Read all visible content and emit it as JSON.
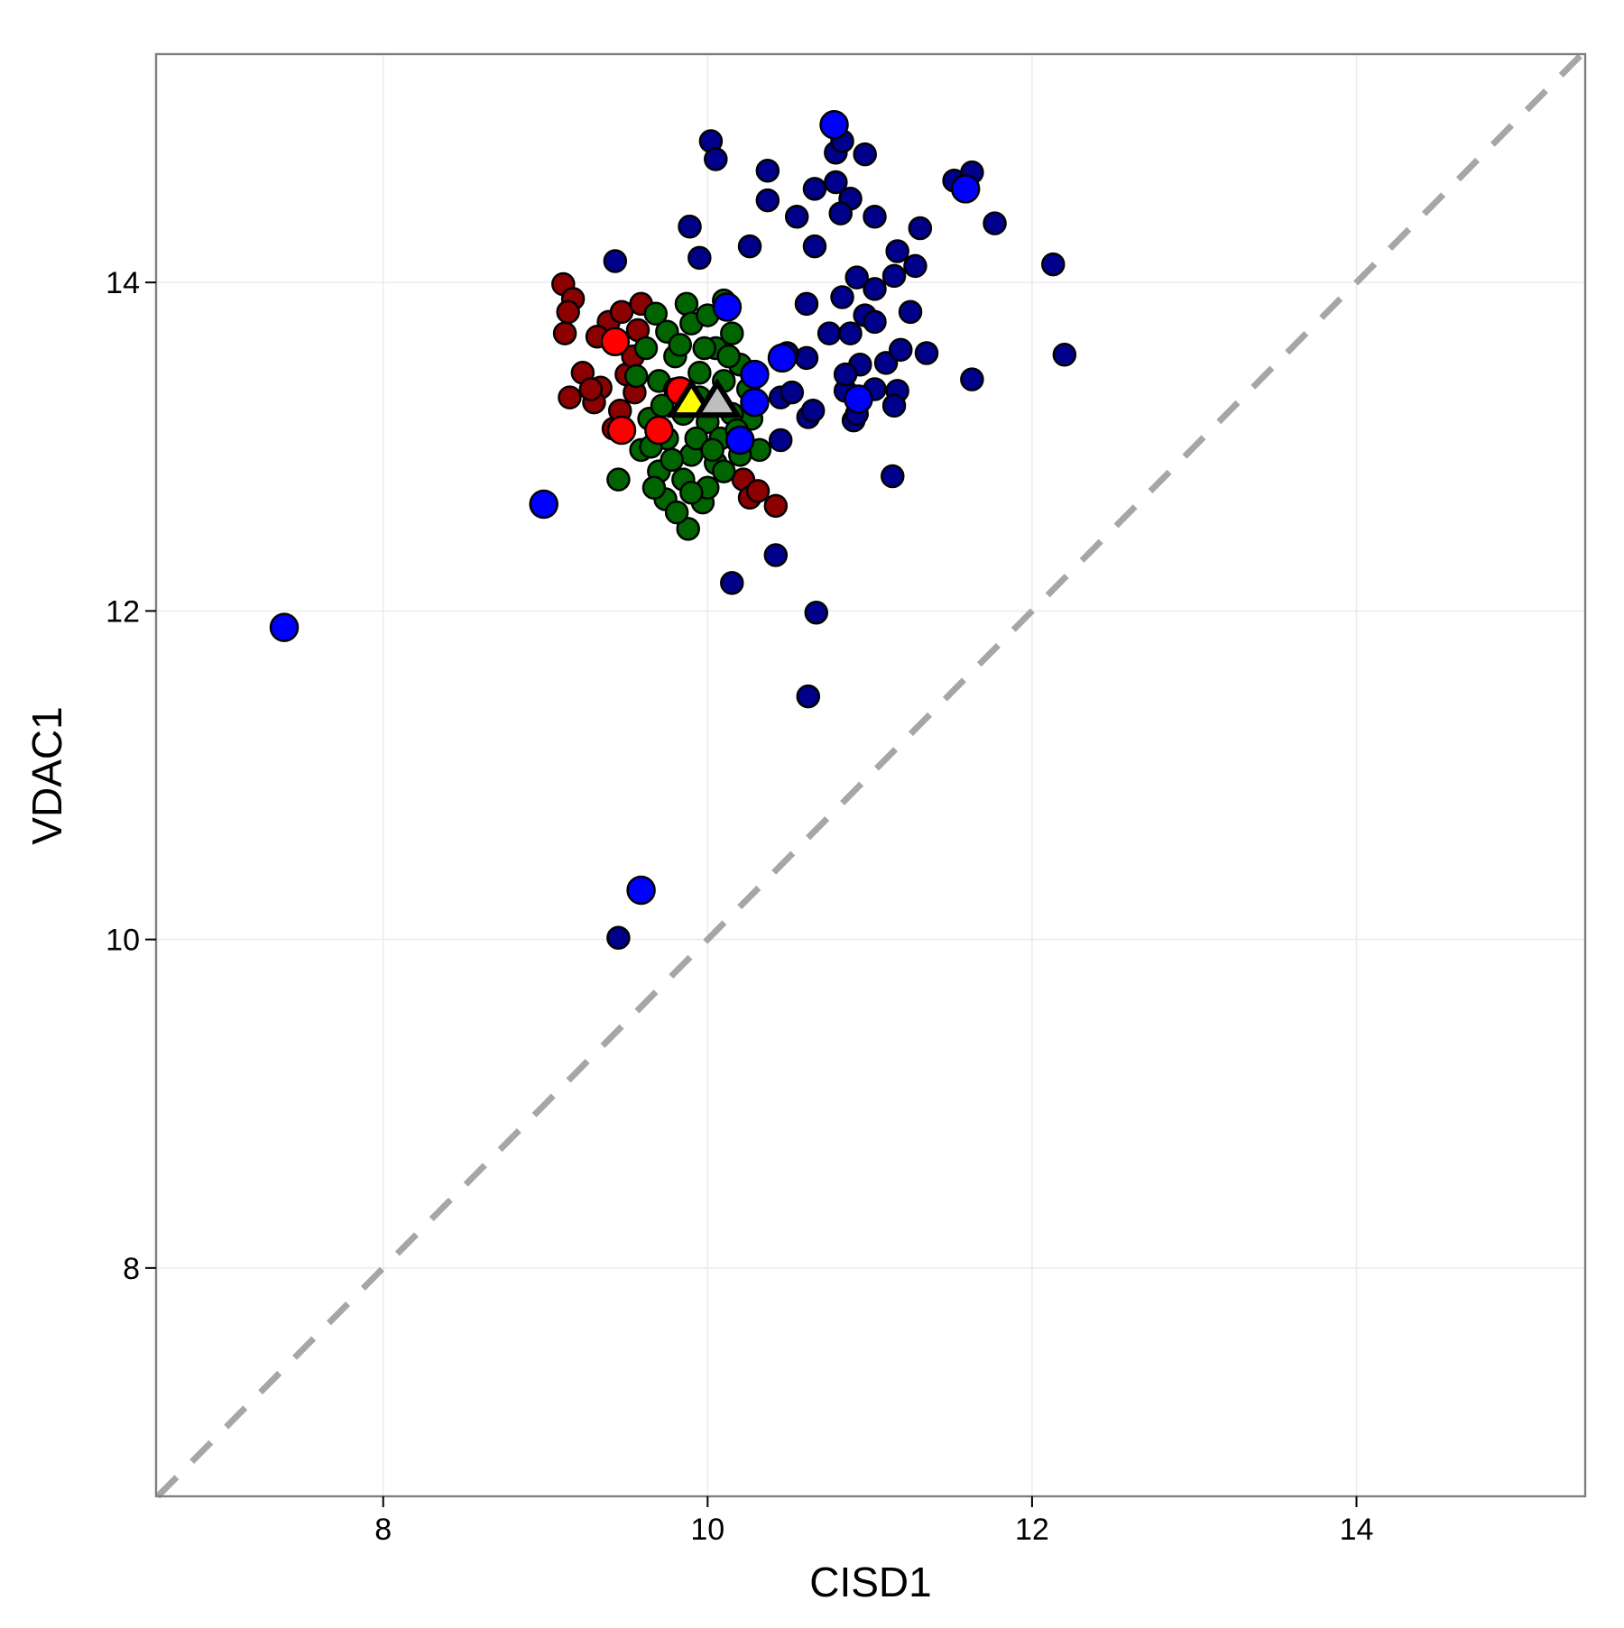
{
  "chart_data": {
    "type": "scatter",
    "x_label": "CISD1",
    "y_label": "VDAC1",
    "xlim": [
      6.6,
      15.41
    ],
    "ylim": [
      6.61,
      15.39
    ],
    "xticks": [
      8,
      10,
      12,
      14
    ],
    "yticks": [
      8,
      10,
      12,
      14
    ],
    "grid": true,
    "series": [
      {
        "color": "#8b0000",
        "marker": "circle",
        "size": 12,
        "x": [
          9.11,
          9.17,
          9.14,
          9.12,
          9.15,
          9.23,
          9.34,
          9.3,
          9.39,
          9.47,
          9.59,
          9.32,
          9.5,
          9.55,
          9.42,
          10.22,
          10.26,
          10.42,
          9.54,
          9.46,
          10.31,
          9.28,
          9.57
        ],
        "y": [
          13.99,
          13.9,
          13.82,
          13.69,
          13.3,
          13.45,
          13.36,
          13.27,
          13.76,
          13.82,
          13.87,
          13.67,
          13.44,
          13.33,
          13.11,
          12.8,
          12.69,
          12.64,
          13.55,
          13.22,
          12.73,
          13.35,
          13.71
        ]
      },
      {
        "color": "#006400",
        "marker": "circle",
        "size": 12,
        "x": [
          9.87,
          10.1,
          9.68,
          9.45,
          9.88,
          9.74,
          9.81,
          9.97,
          10.15,
          10.27,
          10.32,
          9.59,
          9.64,
          9.56,
          9.75,
          9.9,
          10.0,
          10.05,
          9.8,
          9.7,
          9.95,
          10.1,
          10.2,
          9.85,
          10.0,
          10.15,
          9.75,
          9.9,
          10.05,
          10.2,
          9.7,
          9.85,
          10.0,
          10.1,
          9.65,
          9.8,
          10.25,
          9.62,
          10.08,
          9.93,
          9.78,
          9.9,
          10.18,
          9.98,
          9.72,
          10.13,
          9.83,
          9.67,
          10.03,
          9.95
        ],
        "y": [
          13.87,
          13.89,
          13.81,
          12.8,
          12.5,
          12.68,
          12.6,
          12.66,
          13.69,
          13.17,
          12.98,
          12.98,
          13.17,
          13.43,
          13.7,
          13.75,
          13.8,
          13.6,
          13.55,
          13.4,
          13.45,
          13.4,
          13.5,
          13.2,
          13.15,
          13.2,
          13.05,
          12.95,
          12.9,
          12.95,
          12.85,
          12.8,
          12.75,
          12.85,
          13.0,
          13.35,
          13.35,
          13.6,
          13.05,
          13.05,
          12.92,
          12.72,
          13.1,
          13.6,
          13.25,
          13.55,
          13.62,
          12.75,
          12.98,
          13.3
        ]
      },
      {
        "color": "#00008b",
        "marker": "circle",
        "size": 12,
        "x": [
          10.02,
          10.05,
          9.43,
          9.95,
          9.89,
          10.37,
          10.37,
          10.26,
          10.55,
          10.66,
          10.66,
          10.79,
          10.83,
          10.79,
          10.88,
          10.82,
          10.97,
          11.03,
          11.31,
          11.17,
          11.28,
          11.15,
          11.03,
          10.92,
          10.83,
          10.61,
          10.97,
          11.03,
          11.25,
          10.75,
          10.88,
          10.94,
          11.1,
          11.19,
          11.35,
          10.61,
          10.49,
          10.45,
          10.52,
          10.62,
          10.65,
          10.85,
          11.03,
          11.17,
          11.15,
          10.9,
          10.92,
          11.14,
          10.45,
          10.42,
          10.15,
          10.67,
          10.62,
          9.45,
          11.52,
          11.63,
          11.77,
          12.13,
          12.2,
          11.63,
          10.85
        ],
        "y": [
          14.86,
          14.75,
          14.13,
          14.15,
          14.34,
          14.68,
          14.5,
          14.22,
          14.4,
          14.57,
          14.22,
          14.79,
          14.86,
          14.61,
          14.51,
          14.42,
          14.78,
          14.4,
          14.33,
          14.19,
          14.1,
          14.04,
          13.96,
          14.03,
          13.91,
          13.87,
          13.8,
          13.76,
          13.82,
          13.69,
          13.69,
          13.5,
          13.51,
          13.59,
          13.57,
          13.54,
          13.57,
          13.3,
          13.33,
          13.18,
          13.22,
          13.34,
          13.35,
          13.34,
          13.25,
          13.16,
          13.2,
          12.82,
          13.04,
          12.34,
          12.17,
          11.99,
          11.48,
          10.01,
          14.62,
          14.67,
          14.36,
          14.11,
          13.56,
          13.41,
          13.44
        ]
      },
      {
        "color": "#0000ff",
        "marker": "circle",
        "size": 15,
        "x": [
          10.78,
          11.59,
          10.12,
          10.46,
          10.29,
          10.29,
          10.93,
          10.2,
          8.99,
          7.39,
          9.59
        ],
        "y": [
          14.96,
          14.57,
          13.85,
          13.54,
          13.44,
          13.27,
          13.29,
          13.04,
          12.65,
          11.9,
          10.3
        ]
      },
      {
        "color": "#ff0000",
        "marker": "circle",
        "size": 15,
        "x": [
          9.43,
          9.83,
          9.47,
          9.7
        ],
        "y": [
          13.64,
          13.34,
          13.1,
          13.1
        ]
      },
      {
        "color": "#ffff00",
        "marker": "triangle",
        "size": 22,
        "x": [
          9.9
        ],
        "y": [
          13.27
        ]
      },
      {
        "color": "#bebebe",
        "marker": "triangle",
        "size": 22,
        "x": [
          10.06
        ],
        "y": [
          13.27
        ]
      }
    ]
  }
}
